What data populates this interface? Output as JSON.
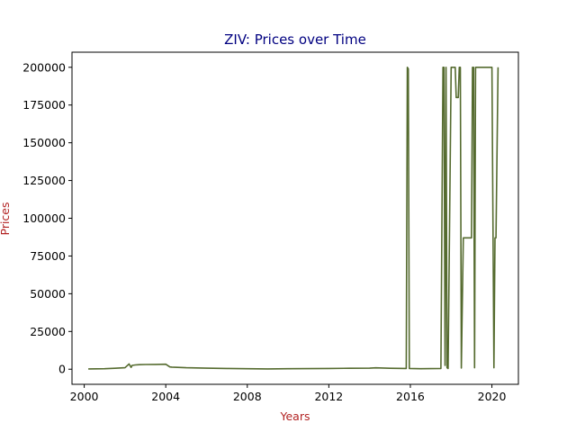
{
  "chart_data": {
    "type": "line",
    "title": "ZIV: Prices over Time",
    "xlabel": "Years",
    "ylabel": "Prices",
    "xlim": [
      1999.4,
      2021.3
    ],
    "ylim": [
      -10000,
      210000
    ],
    "x_ticks": [
      "2000",
      "2004",
      "2008",
      "2012",
      "2016",
      "2020"
    ],
    "y_ticks": [
      "0",
      "25000",
      "50000",
      "75000",
      "100000",
      "125000",
      "150000",
      "175000",
      "200000"
    ],
    "grid": false,
    "legend": "none",
    "colors": {
      "line": "#556b2f",
      "title": "#000080",
      "axis_labels": "#b22222"
    },
    "series": [
      {
        "x": [
          2000.2,
          2001.0,
          2001.5,
          2002.0,
          2002.2,
          2002.3,
          2002.35,
          2002.5,
          2002.7,
          2003.0,
          2003.5,
          2004.0,
          2004.2,
          2004.3,
          2005.0,
          2006.0,
          2007.0,
          2008.0,
          2009.0,
          2010.0,
          2011.0,
          2012.0,
          2013.0,
          2014.0,
          2014.3,
          2015.0,
          2015.8,
          2015.85,
          2015.9,
          2015.95,
          2016.5,
          2017.0,
          2017.5,
          2017.6,
          2017.65,
          2017.7,
          2017.75,
          2017.8,
          2017.85,
          2018.0,
          2018.2,
          2018.25,
          2018.35,
          2018.4,
          2018.45,
          2018.5,
          2018.6,
          2019.0,
          2019.05,
          2019.1,
          2019.15,
          2019.2,
          2019.25,
          2019.3,
          2019.5,
          2020.0,
          2020.1,
          2020.15,
          2020.2,
          2020.3
        ],
        "y": [
          200,
          300,
          600,
          1000,
          3500,
          1200,
          2500,
          2800,
          3000,
          3100,
          3200,
          3300,
          1500,
          1400,
          1000,
          700,
          500,
          300,
          200,
          300,
          400,
          500,
          600,
          700,
          900,
          600,
          500,
          200000,
          199000,
          500,
          300,
          400,
          500,
          200000,
          200000,
          2500,
          200000,
          1000,
          500,
          200000,
          200000,
          180000,
          180000,
          200000,
          200000,
          800,
          87000,
          87000,
          200000,
          200000,
          1000,
          200000,
          200000,
          200000,
          200000,
          200000,
          1000,
          87000,
          87000,
          200000
        ]
      }
    ]
  }
}
